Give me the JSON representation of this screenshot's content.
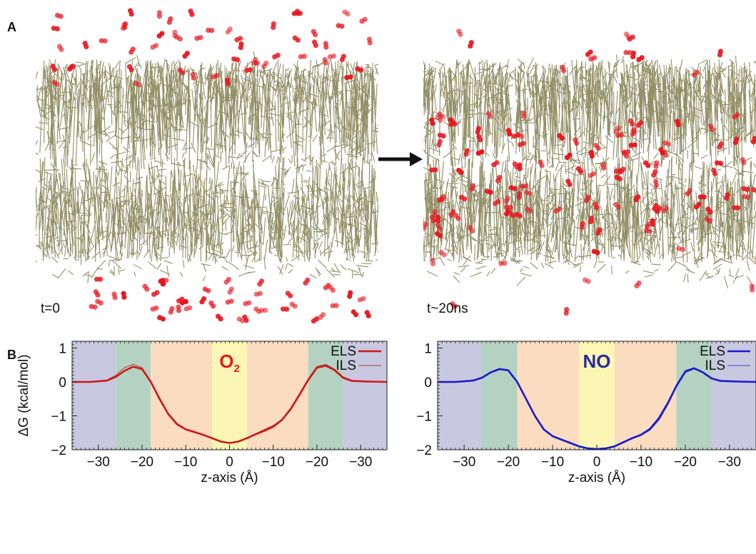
{
  "panel_labels": {
    "a": "A",
    "b": "B"
  },
  "snapshots": {
    "left_time": "t=0",
    "right_time": "t~20ns",
    "lipid_color": "#6e6a33",
    "gas_color": "#e8141d"
  },
  "chart_data": [
    {
      "type": "line",
      "title": "O2",
      "title_color": "#e51a1a",
      "xlabel": "z-axis (Å)",
      "ylabel": "ΔG (kcal/mol)",
      "xlim": [
        -36,
        36
      ],
      "ylim": [
        -2,
        1.2
      ],
      "xticks": [
        -30,
        -20,
        -10,
        0,
        10,
        20,
        30
      ],
      "xtick_labels": [
        "−30",
        "−20",
        "−10",
        "0",
        "−10",
        "−20",
        "−30"
      ],
      "yticks": [
        -2,
        -1,
        0,
        1
      ],
      "ytick_labels": [
        "−2",
        "−1",
        "0",
        "1"
      ],
      "regions": [
        {
          "from": -36,
          "to": -26,
          "color": "#c8c8e0"
        },
        {
          "from": -26,
          "to": -18,
          "color": "#b4d2c2"
        },
        {
          "from": -18,
          "to": -4,
          "color": "#fbdcc0"
        },
        {
          "from": -4,
          "to": 4,
          "color": "#fbf6b4"
        },
        {
          "from": 4,
          "to": 18,
          "color": "#fbdcc0"
        },
        {
          "from": 18,
          "to": 26,
          "color": "#b4d2c2"
        },
        {
          "from": 26,
          "to": 36,
          "color": "#c8c8e0"
        }
      ],
      "legend_position": "top-right",
      "x": [
        -36,
        -32,
        -28,
        -26,
        -24,
        -22,
        -20,
        -18,
        -16,
        -14,
        -12,
        -10,
        -8,
        -6,
        -4,
        -2,
        0,
        2,
        4,
        6,
        8,
        10,
        12,
        14,
        16,
        18,
        20,
        22,
        24,
        26,
        28,
        32,
        36
      ],
      "series": [
        {
          "name": "ELS",
          "color": "#cc1a1a",
          "width": 2.6,
          "values": [
            0.0,
            0.0,
            0.04,
            0.15,
            0.33,
            0.45,
            0.38,
            0.0,
            -0.5,
            -0.95,
            -1.25,
            -1.4,
            -1.48,
            -1.56,
            -1.66,
            -1.76,
            -1.8,
            -1.76,
            -1.66,
            -1.54,
            -1.44,
            -1.32,
            -1.12,
            -0.8,
            -0.38,
            0.06,
            0.42,
            0.48,
            0.35,
            0.12,
            0.03,
            0.01,
            0.0
          ]
        },
        {
          "name": "ILS",
          "color": "#b04040",
          "width": 1.0,
          "values": [
            0.0,
            0.0,
            0.06,
            0.2,
            0.42,
            0.52,
            0.42,
            0.02,
            -0.46,
            -0.92,
            -1.22,
            -1.38,
            -1.46,
            -1.55,
            -1.64,
            -1.74,
            -1.79,
            -1.74,
            -1.64,
            -1.52,
            -1.4,
            -1.28,
            -1.1,
            -0.76,
            -0.34,
            0.1,
            0.46,
            0.52,
            0.38,
            0.15,
            0.05,
            0.02,
            0.0
          ]
        }
      ]
    },
    {
      "type": "line",
      "title": "NO",
      "title_color": "#2a2a9e",
      "xlabel": "z-axis (Å)",
      "ylabel": "",
      "xlim": [
        -36,
        36
      ],
      "ylim": [
        -2,
        1.2
      ],
      "xticks": [
        -30,
        -20,
        -10,
        0,
        10,
        20,
        30
      ],
      "xtick_labels": [
        "−30",
        "−20",
        "−10",
        "0",
        "−10",
        "−20",
        "−30"
      ],
      "yticks": [
        -2,
        -1,
        0,
        1
      ],
      "ytick_labels": [
        "−2",
        "−1",
        "0",
        "1"
      ],
      "regions": [
        {
          "from": -36,
          "to": -26,
          "color": "#c8c8e0"
        },
        {
          "from": -26,
          "to": -18,
          "color": "#b4d2c2"
        },
        {
          "from": -18,
          "to": -4,
          "color": "#fbdcc0"
        },
        {
          "from": -4,
          "to": 4,
          "color": "#fbf6b4"
        },
        {
          "from": 4,
          "to": 18,
          "color": "#fbdcc0"
        },
        {
          "from": 18,
          "to": 26,
          "color": "#b4d2c2"
        },
        {
          "from": 26,
          "to": 36,
          "color": "#c8c8e0"
        }
      ],
      "legend_position": "top-right",
      "x": [
        -36,
        -32,
        -28,
        -26,
        -24,
        -22,
        -20,
        -18,
        -16,
        -14,
        -12,
        -10,
        -8,
        -6,
        -4,
        -2,
        0,
        2,
        4,
        6,
        8,
        10,
        12,
        14,
        16,
        18,
        20,
        22,
        24,
        26,
        28,
        32,
        36
      ],
      "series": [
        {
          "name": "ELS",
          "color": "#1a1acc",
          "width": 2.6,
          "values": [
            0.0,
            0.0,
            0.04,
            0.12,
            0.28,
            0.38,
            0.34,
            0.0,
            -0.5,
            -1.0,
            -1.4,
            -1.6,
            -1.7,
            -1.8,
            -1.9,
            -1.96,
            -1.98,
            -1.96,
            -1.9,
            -1.78,
            -1.66,
            -1.56,
            -1.4,
            -1.1,
            -0.65,
            -0.12,
            0.3,
            0.4,
            0.28,
            0.1,
            0.03,
            0.01,
            0.0
          ]
        },
        {
          "name": "ILS",
          "color": "#4444cc",
          "width": 1.0,
          "values": [
            0.0,
            0.0,
            0.05,
            0.14,
            0.3,
            0.4,
            0.36,
            0.02,
            -0.48,
            -0.98,
            -1.38,
            -1.58,
            -1.68,
            -1.78,
            -1.88,
            -1.95,
            -1.97,
            -1.95,
            -1.88,
            -1.76,
            -1.64,
            -1.54,
            -1.36,
            -1.04,
            -0.6,
            -0.08,
            0.34,
            0.42,
            0.3,
            0.12,
            0.04,
            0.01,
            0.0
          ]
        }
      ]
    }
  ]
}
